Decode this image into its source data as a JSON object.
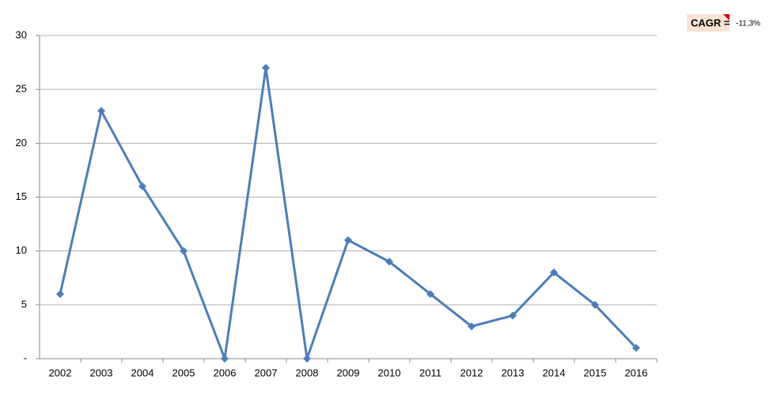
{
  "chart_data": {
    "type": "line",
    "categories": [
      "2002",
      "2003",
      "2004",
      "2005",
      "2006",
      "2007",
      "2008",
      "2009",
      "2010",
      "2011",
      "2012",
      "2013",
      "2014",
      "2015",
      "2016"
    ],
    "values": [
      6,
      23,
      16,
      10,
      0,
      27,
      0,
      11,
      9,
      6,
      3,
      4,
      8,
      5,
      1
    ],
    "color": "#4a7ebb",
    "ylim": [
      0,
      30
    ],
    "yticks": [
      {
        "value": 0,
        "label": "-"
      },
      5,
      10,
      15,
      20,
      25,
      30
    ],
    "grid": true,
    "annotation": [
      "CAGR =",
      "-11,3%"
    ]
  }
}
